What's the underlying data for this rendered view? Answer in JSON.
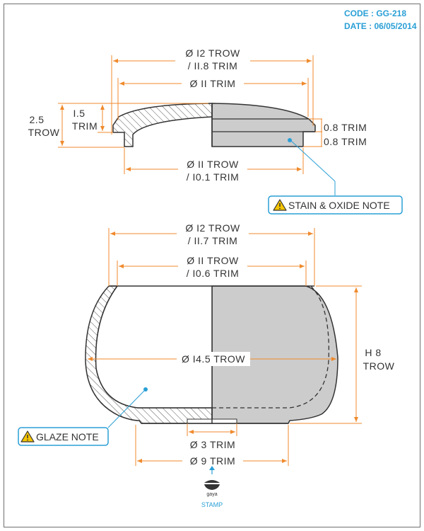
{
  "meta": {
    "code": "CODE : GG-218",
    "date": "DATE : 06/05/2014"
  },
  "colors": {
    "dimension": "#f08a2c",
    "outline": "#333333",
    "fill": "#cccccc",
    "accent": "#2a9fd6",
    "warning": "#f5c400"
  },
  "lid": {
    "dia_outer_1": "Ø I2 TROW",
    "dia_outer_2": "/ II.8 TRIM",
    "dia_inner": "Ø II TRIM",
    "height_total_1": "2.5",
    "height_total_2": "TROW",
    "height_dome_1": "I.5",
    "height_dome_2": "TRIM",
    "rim_thickness_1": "0.8 TRIM",
    "rim_thickness_2": "0.8 TRIM",
    "dia_bottom_1": "Ø II TROW",
    "dia_bottom_2": "/ I0.1 TRIM"
  },
  "pot": {
    "dia_top_1": "Ø I2 TROW",
    "dia_top_2": "/ II.7 TRIM",
    "dia_opening_1": "Ø II TROW",
    "dia_opening_2": "/ I0.6 TRIM",
    "dia_max": "Ø I4.5 TROW",
    "height_1": "H 8",
    "height_2": "TROW",
    "foot_inner": "Ø 3 TRIM",
    "foot_outer": "Ø 9 TRIM"
  },
  "notes": {
    "stain": "STAIN & OXIDE NOTE",
    "glaze": "GLAZE NOTE"
  },
  "stamp": {
    "brand": "gaya",
    "label": "STAMP"
  },
  "icons": {
    "warning": "warning-triangle-icon",
    "stamp": "stamp-icon",
    "arrow": "arrow-up-icon"
  }
}
